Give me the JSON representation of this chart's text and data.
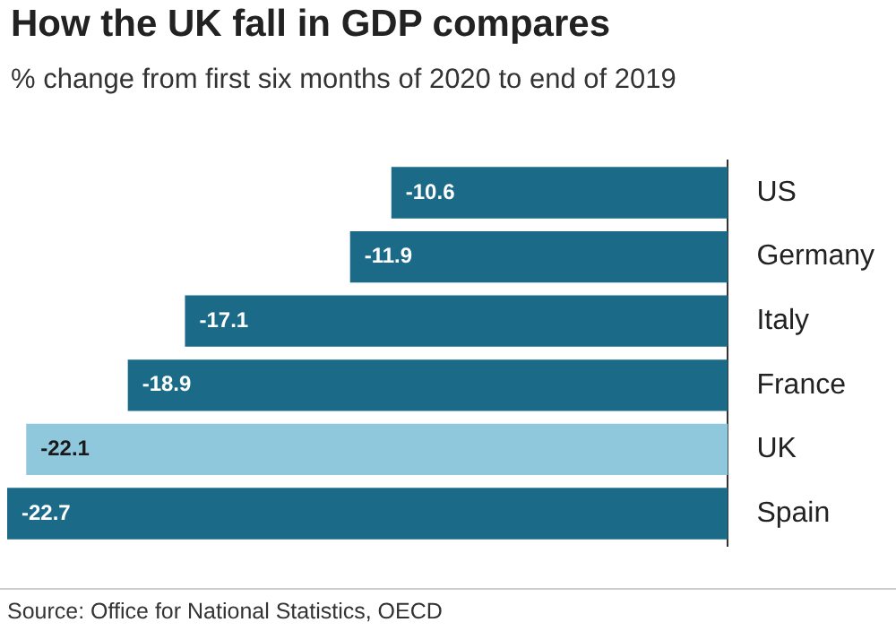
{
  "chart_data": {
    "type": "bar",
    "orientation": "horizontal",
    "title": "How the UK fall in GDP compares",
    "subtitle": "% change from first six months of 2020 to end of 2019",
    "categories": [
      "US",
      "Germany",
      "Italy",
      "France",
      "UK",
      "Spain"
    ],
    "values": [
      -10.6,
      -11.9,
      -17.1,
      -18.9,
      -22.1,
      -22.7
    ],
    "colors": [
      "#1b6a87",
      "#1b6a87",
      "#1b6a87",
      "#1b6a87",
      "#8fc7dc",
      "#1b6a87"
    ],
    "data_labels": true,
    "grid": false,
    "legend": false,
    "annotations": [
      "Source: Office for National Statistics, OECD"
    ]
  }
}
